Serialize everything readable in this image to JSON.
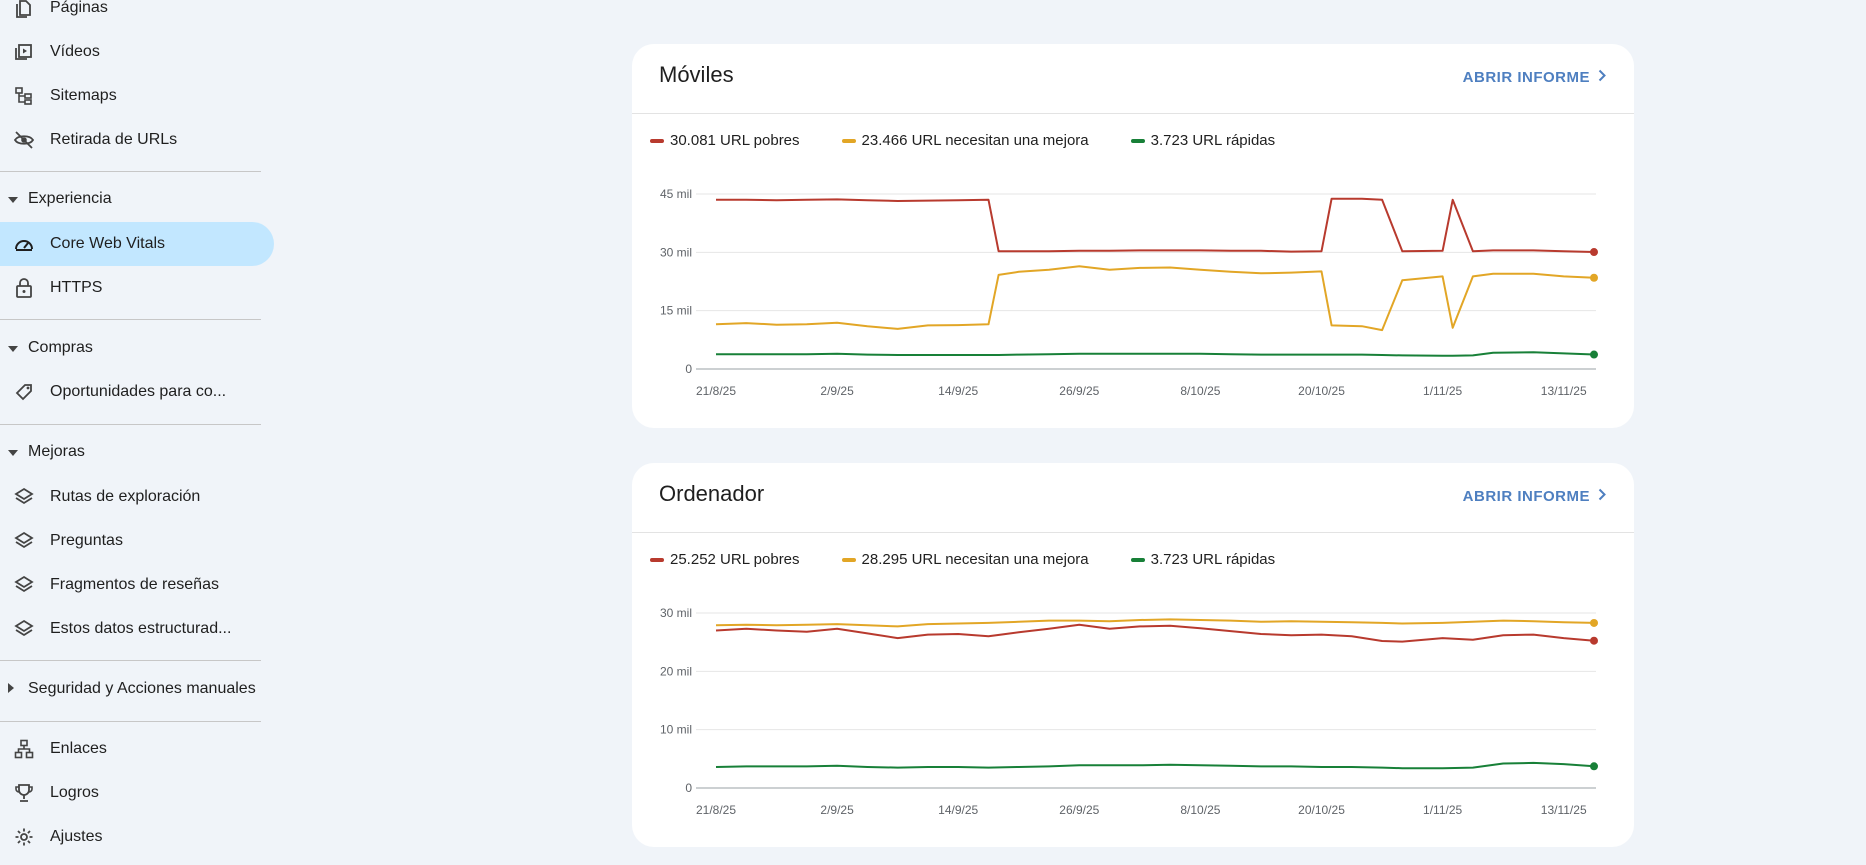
{
  "sidebar": {
    "items_top": [
      {
        "label": "Páginas",
        "icon": "pages-icon"
      },
      {
        "label": "Vídeos",
        "icon": "video-icon"
      },
      {
        "label": "Sitemaps",
        "icon": "sitemap-icon"
      },
      {
        "label": "Retirada de URLs",
        "icon": "eye-off-icon"
      }
    ],
    "sections": {
      "experiencia": "Experiencia",
      "compras": "Compras",
      "mejoras": "Mejoras",
      "seguridad": "Seguridad y Acciones manuales"
    },
    "experiencia_items": [
      {
        "label": "Core Web Vitals",
        "icon": "speed-gauge-icon",
        "active": true
      },
      {
        "label": "HTTPS",
        "icon": "lock-icon"
      }
    ],
    "compras_items": [
      {
        "label": "Oportunidades para co...",
        "icon": "tag-icon"
      }
    ],
    "mejoras_items": [
      {
        "label": "Rutas de exploración",
        "icon": "layers-icon"
      },
      {
        "label": "Preguntas",
        "icon": "layers-icon"
      },
      {
        "label": "Fragmentos de reseñas",
        "icon": "layers-icon"
      },
      {
        "label": "Estos datos estructurad...",
        "icon": "layers-icon"
      }
    ],
    "bottom_items": [
      {
        "label": "Enlaces",
        "icon": "links-icon"
      },
      {
        "label": "Logros",
        "icon": "trophy-icon"
      },
      {
        "label": "Ajustes",
        "icon": "gear-icon"
      }
    ]
  },
  "cards": {
    "mobile": {
      "title": "Móviles",
      "open_label": "ABRIR INFORME",
      "legend": [
        "30.081 URL pobres",
        "23.466 URL necesitan una mejora",
        "3.723 URL rápidas"
      ]
    },
    "desktop": {
      "title": "Ordenador",
      "open_label": "ABRIR INFORME",
      "legend": [
        "25.252 URL pobres",
        "28.295 URL necesitan una mejora",
        "3.723 URL rápidas"
      ]
    }
  },
  "colors": {
    "poor": "#b83a2e",
    "improve": "#e2a626",
    "fast": "#188038",
    "accent": "#4e7fc0",
    "active_bg": "#c2e7ff"
  },
  "chart_data": [
    {
      "type": "line",
      "title": "Móviles",
      "x_tick_labels": [
        "21/8/25",
        "2/9/25",
        "14/9/25",
        "26/9/25",
        "8/10/25",
        "20/10/25",
        "1/11/25",
        "13/11/25"
      ],
      "y_tick_labels": [
        "0",
        "15 mil",
        "30 mil",
        "45 mil"
      ],
      "ylim": [
        0,
        45000
      ],
      "x_points": [
        "21/8/25",
        "24/8/25",
        "27/8/25",
        "30/8/25",
        "2/9/25",
        "5/9/25",
        "8/9/25",
        "11/9/25",
        "14/9/25",
        "17/9/25",
        "18/9/25",
        "20/9/25",
        "23/9/25",
        "26/9/25",
        "29/9/25",
        "2/10/25",
        "5/10/25",
        "8/10/25",
        "11/10/25",
        "14/10/25",
        "17/10/25",
        "20/10/25",
        "21/10/25",
        "24/10/25",
        "26/10/25",
        "28/10/25",
        "1/11/25",
        "2/11/25",
        "4/11/25",
        "6/11/25",
        "10/11/25",
        "13/11/25",
        "16/11/25"
      ],
      "series": [
        {
          "name": "30.081 URL pobres",
          "color": "#b83a2e",
          "values": [
            43500,
            43500,
            43400,
            43500,
            43600,
            43400,
            43200,
            43300,
            43400,
            43500,
            30300,
            30300,
            30300,
            30400,
            30400,
            30500,
            30500,
            30500,
            30400,
            30400,
            30200,
            30300,
            43800,
            43800,
            43500,
            30300,
            30400,
            43500,
            30300,
            30500,
            30500,
            30300,
            30081
          ]
        },
        {
          "name": "23.466 URL necesitan una mejora",
          "color": "#e2a626",
          "values": [
            11500,
            11800,
            11400,
            11500,
            11900,
            11000,
            10300,
            11200,
            11300,
            11500,
            24200,
            25000,
            25500,
            26400,
            25500,
            26000,
            26100,
            25500,
            25000,
            24600,
            24800,
            25100,
            11200,
            11000,
            10000,
            22800,
            23800,
            10600,
            23800,
            24500,
            24500,
            23800,
            23466
          ]
        },
        {
          "name": "3.723 URL rápidas",
          "color": "#188038",
          "values": [
            3800,
            3800,
            3800,
            3800,
            3900,
            3700,
            3600,
            3600,
            3600,
            3600,
            3600,
            3700,
            3800,
            3900,
            3900,
            3900,
            3900,
            3900,
            3800,
            3700,
            3700,
            3700,
            3700,
            3700,
            3600,
            3500,
            3400,
            3400,
            3500,
            4200,
            4300,
            4000,
            3723
          ]
        }
      ]
    },
    {
      "type": "line",
      "title": "Ordenador",
      "x_tick_labels": [
        "21/8/25",
        "2/9/25",
        "14/9/25",
        "26/9/25",
        "8/10/25",
        "20/10/25",
        "1/11/25",
        "13/11/25"
      ],
      "y_tick_labels": [
        "0",
        "10 mil",
        "20 mil",
        "30 mil"
      ],
      "ylim": [
        0,
        30000
      ],
      "x_points": [
        "21/8/25",
        "24/8/25",
        "27/8/25",
        "30/8/25",
        "2/9/25",
        "5/9/25",
        "8/9/25",
        "11/9/25",
        "14/9/25",
        "17/9/25",
        "20/9/25",
        "23/9/25",
        "26/9/25",
        "29/9/25",
        "2/10/25",
        "5/10/25",
        "8/10/25",
        "11/10/25",
        "14/10/25",
        "17/10/25",
        "20/10/25",
        "23/10/25",
        "26/10/25",
        "28/10/25",
        "1/11/25",
        "4/11/25",
        "7/11/25",
        "10/11/25",
        "13/11/25",
        "16/11/25"
      ],
      "series": [
        {
          "name": "25.252 URL pobres",
          "color": "#b83a2e",
          "values": [
            27000,
            27300,
            27000,
            26800,
            27300,
            26500,
            25700,
            26300,
            26400,
            26000,
            26700,
            27300,
            28000,
            27300,
            27700,
            27800,
            27400,
            26900,
            26400,
            26200,
            26300,
            26000,
            25200,
            25100,
            25700,
            25400,
            26200,
            26300,
            25700,
            25252
          ]
        },
        {
          "name": "28.295 URL necesitan una mejora",
          "color": "#e2a626",
          "values": [
            27900,
            28000,
            27900,
            28000,
            28100,
            27900,
            27700,
            28100,
            28200,
            28300,
            28500,
            28700,
            28700,
            28600,
            28800,
            28900,
            28800,
            28700,
            28500,
            28600,
            28500,
            28400,
            28300,
            28200,
            28300,
            28500,
            28700,
            28600,
            28400,
            28295
          ]
        },
        {
          "name": "3.723 URL rápidas",
          "color": "#188038",
          "values": [
            3600,
            3700,
            3700,
            3700,
            3800,
            3600,
            3500,
            3600,
            3600,
            3500,
            3600,
            3700,
            3900,
            3900,
            3900,
            4000,
            3900,
            3800,
            3700,
            3700,
            3600,
            3600,
            3500,
            3400,
            3400,
            3500,
            4200,
            4300,
            4100,
            3723
          ]
        }
      ]
    }
  ]
}
